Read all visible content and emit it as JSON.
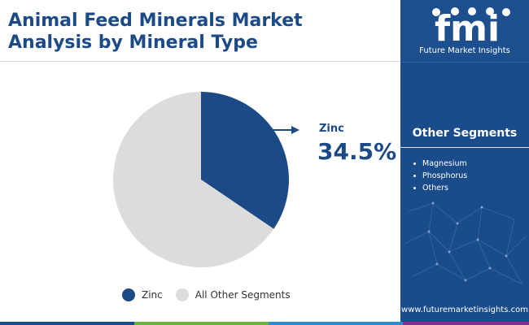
{
  "header": {
    "title_line1": "Animal Feed Minerals Market",
    "title_line2": "Analysis by Mineral Type"
  },
  "chart_data": {
    "type": "pie",
    "title": "Animal Feed Minerals Market Analysis by Mineral Type",
    "slices": [
      {
        "label": "Zinc",
        "value": 34.5,
        "color": "#1c4a87"
      },
      {
        "label": "All Other Segments",
        "value": 65.5,
        "color": "#dcdcdc"
      }
    ],
    "callout": {
      "label": "Zinc",
      "value_text": "34.5%"
    },
    "legend": {
      "placement": "bottom",
      "items": [
        "Zinc",
        "All Other Segments"
      ]
    }
  },
  "sidebar": {
    "logo_text": "fmi",
    "logo_caption": "Future Market Insights",
    "other_heading": "Other Segments",
    "other_items": [
      "Magnesium",
      "Phosphorus",
      "Others"
    ],
    "website": "www.futuremarketinsights.com"
  },
  "colors": {
    "brand_blue": "#1c4a87",
    "sidebar_blue": "#1a4b8a",
    "other_gray": "#dcdcdc",
    "bar_colors": [
      "#1a4b8a",
      "#6cb33f",
      "#2e8ccf",
      "#8a2d8f"
    ]
  }
}
